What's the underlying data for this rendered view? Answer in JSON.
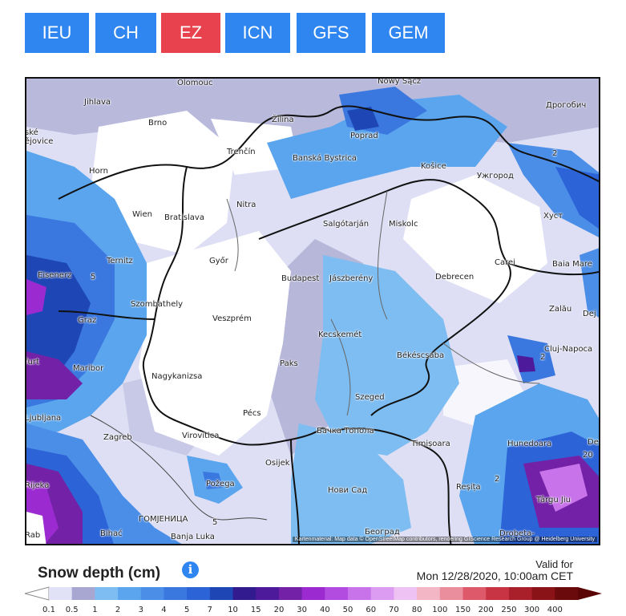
{
  "tabs": [
    {
      "label": "IEU",
      "color": "#2f86f0"
    },
    {
      "label": "CH",
      "color": "#2f86f0"
    },
    {
      "label": "EZ",
      "color": "#e8424f",
      "active": true
    },
    {
      "label": "ICN",
      "color": "#2f86f0"
    },
    {
      "label": "GFS",
      "color": "#2f86f0"
    },
    {
      "label": "GEM",
      "color": "#2f86f0"
    }
  ],
  "map": {
    "attribution": "Kartenmaterial: Map data © OpenStreetMap contributors, rendering GIScience Research Group @ Heidelberg University",
    "cities": [
      {
        "name": "Olomouc"
      },
      {
        "name": "Nowy Sącz"
      },
      {
        "name": "Jihlava"
      },
      {
        "name": "Дрогобич"
      },
      {
        "name": "Brno"
      },
      {
        "name": "Žilina"
      },
      {
        "name": "Poprad"
      },
      {
        "name": "Trenčín"
      },
      {
        "name": "Banská Bystrica"
      },
      {
        "name": "Košice"
      },
      {
        "name": "Ужгород"
      },
      {
        "name": "Horn"
      },
      {
        "name": "Wien"
      },
      {
        "name": "Bratislava"
      },
      {
        "name": "Nitra"
      },
      {
        "name": "Хуст"
      },
      {
        "name": "Salgótarján"
      },
      {
        "name": "Miskolc"
      },
      {
        "name": "Ternitz"
      },
      {
        "name": "Győr"
      },
      {
        "name": "Carei"
      },
      {
        "name": "Baia Mare"
      },
      {
        "name": "Eisenerz"
      },
      {
        "name": "Budapest"
      },
      {
        "name": "Jászberény"
      },
      {
        "name": "Debrecen"
      },
      {
        "name": "Szombathely"
      },
      {
        "name": "Zalău"
      },
      {
        "name": "Graz"
      },
      {
        "name": "Veszprém"
      },
      {
        "name": "Kecskemét"
      },
      {
        "name": "Cluj-Napoca"
      },
      {
        "name": "Békéscsaba"
      },
      {
        "name": "Paks"
      },
      {
        "name": "Maribor"
      },
      {
        "name": "Nagykanizsa"
      },
      {
        "name": "Szeged"
      },
      {
        "name": "Pécs"
      },
      {
        "name": "Бачка Топола"
      },
      {
        "name": "Zagreb"
      },
      {
        "name": "Virovitica"
      },
      {
        "name": "Timișoara"
      },
      {
        "name": "Hunedoara"
      },
      {
        "name": "Osijek"
      },
      {
        "name": "Požega"
      },
      {
        "name": "Нови Сад"
      },
      {
        "name": "Reșița"
      },
      {
        "name": "Târgu Jiu"
      },
      {
        "name": "ГОМЈЕНИЦА"
      },
      {
        "name": "Bihać"
      },
      {
        "name": "Banja Luka"
      },
      {
        "name": "Београд"
      },
      {
        "name": "Drobeta-"
      },
      {
        "name": "Ljubljana"
      },
      {
        "name": "Deva"
      },
      {
        "name": "Rijeka"
      },
      {
        "name": "Dej"
      },
      {
        "name": "Rab"
      },
      {
        "name": "furt"
      },
      {
        "name": "ské\nějovice"
      }
    ],
    "contour_labels": [
      "2",
      "5",
      "2",
      "5",
      "2",
      "20"
    ]
  },
  "legend": {
    "title": "Snow depth (cm)",
    "info_icon": "i",
    "valid_for": "Valid for",
    "valid_time": "Mon 12/28/2020, 10:00am CET",
    "ticks": [
      "0.1",
      "0.5",
      "1",
      "2",
      "3",
      "4",
      "5",
      "7",
      "10",
      "15",
      "20",
      "30",
      "40",
      "50",
      "60",
      "70",
      "80",
      "100",
      "150",
      "200",
      "250",
      "300",
      "400"
    ],
    "colors": [
      "#e2e2f7",
      "#a7a7d1",
      "#7ebdf2",
      "#5aa5ee",
      "#4b8ee8",
      "#3a78df",
      "#2c63d6",
      "#1e47b5",
      "#321a8f",
      "#4d1a9b",
      "#7322a8",
      "#9b2bd0",
      "#b24be0",
      "#c873ea",
      "#dc9cf2",
      "#efc2f4",
      "#f3b6c4",
      "#ea8d9c",
      "#de5a6b",
      "#c83444",
      "#a91f2a",
      "#8a1318",
      "#6b0a0c"
    ]
  }
}
